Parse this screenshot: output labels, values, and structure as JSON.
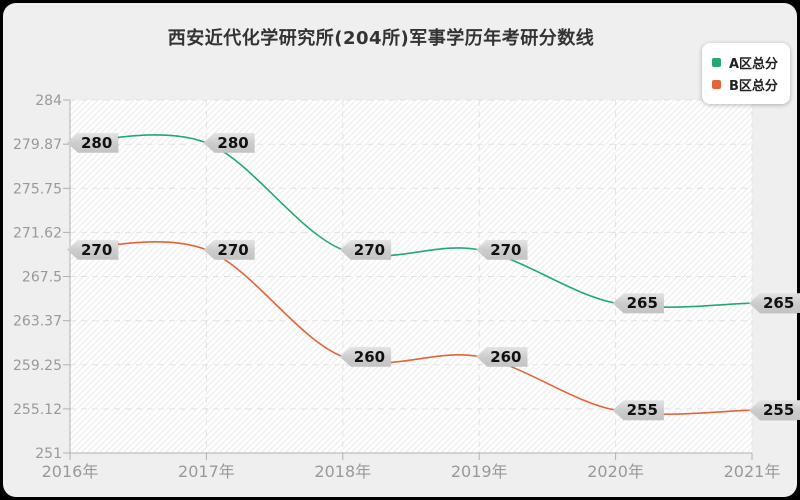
{
  "title": "西安近代化学研究所(204所)军事学历年考研分数线",
  "chart_data": {
    "type": "line",
    "smooth": true,
    "title": "西安近代化学研究所(204所)军事学历年考研分数线",
    "categories": [
      "2016年",
      "2017年",
      "2018年",
      "2019年",
      "2020年",
      "2021年"
    ],
    "series": [
      {
        "name": "A区总分",
        "color": "#23a873",
        "values": [
          280,
          280,
          270,
          270,
          265,
          265
        ]
      },
      {
        "name": "B区总分",
        "color": "#e0663a",
        "values": [
          270,
          270,
          260,
          260,
          255,
          255
        ]
      }
    ],
    "ylim": [
      251,
      284
    ],
    "y_ticks": [
      "284",
      "279.87",
      "275.75",
      "271.62",
      "267.5",
      "263.37",
      "259.25",
      "255.12",
      "251"
    ],
    "grid": "dashed",
    "legend_position": "top-right",
    "point_labels": true,
    "xlabel": "",
    "ylabel": ""
  },
  "colors": {
    "card_background": "#efefef",
    "frame": "#000000",
    "plot_background": "#ffffff",
    "hatch": "#ebebeb",
    "axis": "#b0b0b0",
    "gridline": "#e2e2e2",
    "tick_label": "#999999",
    "title_text": "#333333",
    "point_label_bg": "#cccccc",
    "legend_bg": "#ffffff"
  }
}
